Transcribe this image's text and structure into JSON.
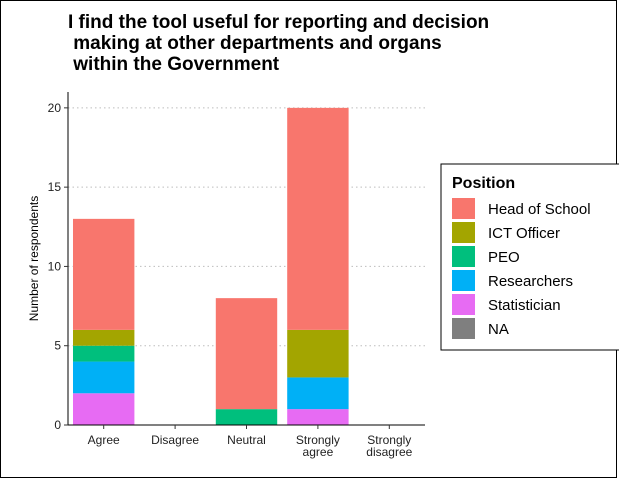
{
  "chart_data": {
    "type": "bar",
    "stacked": true,
    "title_lines": [
      "I find the tool useful for reporting and decision",
      " making at other departments and organs",
      " within the Government"
    ],
    "xlabel": "",
    "ylabel": "Number of respondents",
    "categories": [
      [
        "Agree"
      ],
      [
        "Disagree"
      ],
      [
        "Neutral"
      ],
      [
        "Strongly",
        "agree"
      ],
      [
        "Strongly",
        "disagree"
      ]
    ],
    "ylim": [
      0,
      21
    ],
    "yticks": [
      0,
      5,
      10,
      15,
      20
    ],
    "grid": true,
    "legend": {
      "title": "Position",
      "placement": "right"
    },
    "series": [
      {
        "name": "Head of School",
        "color": "#F8766D",
        "values": [
          7,
          0,
          7,
          14,
          0
        ]
      },
      {
        "name": "ICT Officer",
        "color": "#A3A500",
        "values": [
          1,
          0,
          0,
          3,
          0
        ]
      },
      {
        "name": "PEO",
        "color": "#00BF7D",
        "values": [
          1,
          0,
          1,
          0,
          0
        ]
      },
      {
        "name": "Researchers",
        "color": "#00B0F6",
        "values": [
          2,
          0,
          0,
          2,
          0
        ]
      },
      {
        "name": "Statistician",
        "color": "#E76BF3",
        "values": [
          2,
          0,
          0,
          1,
          0
        ]
      },
      {
        "name": "NA",
        "color": "#7F7F7F",
        "values": [
          0,
          0,
          0,
          0,
          0
        ]
      }
    ]
  }
}
